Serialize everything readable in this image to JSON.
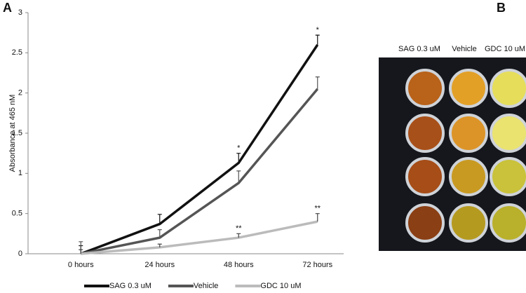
{
  "chart_data": {
    "type": "line",
    "y_label": "Absorbance at 465 nM",
    "categories": [
      "0 hours",
      "24 hours",
      "48 hours",
      "72 hours"
    ],
    "ylim": [
      0,
      3
    ],
    "yticks": [
      0,
      0.5,
      1,
      1.5,
      2,
      2.5,
      3
    ],
    "series": [
      {
        "name": "SAG 0.3 uM",
        "color": "#111111",
        "values": [
          0,
          0.37,
          1.13,
          2.6
        ],
        "errors": [
          0.1,
          0.12,
          0.12,
          0.12
        ],
        "significance": [
          null,
          null,
          "*",
          "*"
        ]
      },
      {
        "name": "Vehicle",
        "color": "#555555",
        "values": [
          0,
          0.2,
          0.88,
          2.05
        ],
        "errors": [
          0.15,
          0.1,
          0.15,
          0.15
        ],
        "significance": [
          null,
          null,
          null,
          null
        ]
      },
      {
        "name": "GDC 10 uM",
        "color": "#bbbbbb",
        "values": [
          0,
          0.08,
          0.2,
          0.4
        ],
        "errors": [
          0.05,
          0.04,
          0.05,
          0.1
        ],
        "significance": [
          null,
          null,
          "**",
          "**"
        ]
      }
    ],
    "legend": "bottom"
  },
  "panel_labels": [
    "A",
    "B"
  ],
  "photo_column_labels": [
    "SAG 0.3 uM",
    "Vehicle",
    "GDC 10 uM"
  ]
}
